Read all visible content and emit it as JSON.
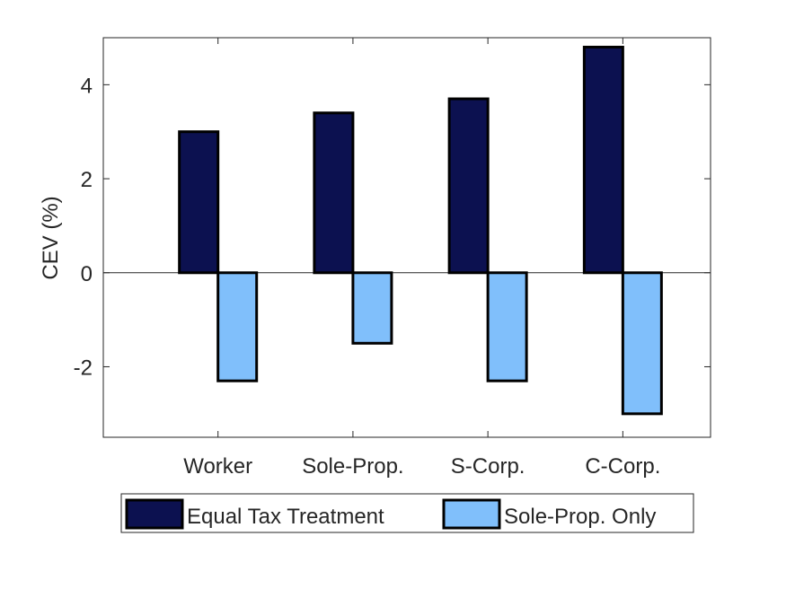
{
  "chart_data": {
    "type": "bar",
    "categories": [
      "Worker",
      "Sole-Prop.",
      "S-Corp.",
      "C-Corp."
    ],
    "series": [
      {
        "name": "Equal Tax Treatment",
        "values": [
          3.0,
          3.4,
          3.7,
          4.8
        ],
        "color": "#0c1150"
      },
      {
        "name": "Sole-Prop. Only",
        "values": [
          -2.3,
          -1.5,
          -2.3,
          -3.0
        ],
        "color": "#80bffb"
      }
    ],
    "title": "",
    "xlabel": "",
    "ylabel": "CEV (%)",
    "ylim": [
      -3.5,
      5
    ],
    "yticks": [
      -2,
      0,
      2,
      4
    ],
    "grid": false,
    "legend_position": "bottom"
  }
}
